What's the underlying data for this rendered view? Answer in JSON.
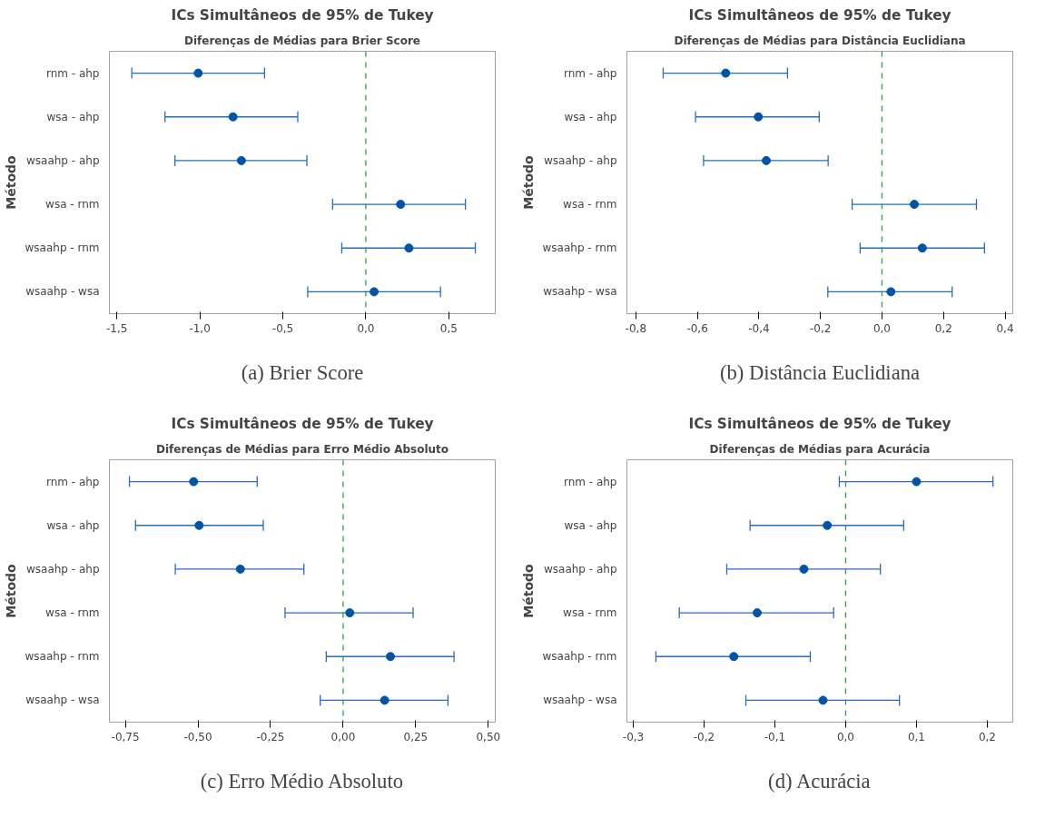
{
  "chart_data": [
    {
      "type": "scatter",
      "orientation": "horizontal",
      "title": "ICs Simultâneos de 95% de Tukey",
      "subtitle": "Diferenças de Médias para Brier Score",
      "ylabel": "Método",
      "categories": [
        "rnm - ahp",
        "wsa - ahp",
        "wsaahp - ahp",
        "wsa - rnm",
        "wsaahp - rnm",
        "wsaahp - wsa"
      ],
      "values": [
        -1.01,
        -0.8,
        -0.75,
        0.21,
        0.26,
        0.05
      ],
      "errors": [
        [
          -1.41,
          -0.61
        ],
        [
          -1.21,
          -0.41
        ],
        [
          -1.15,
          -0.355
        ],
        [
          -0.2,
          0.6
        ],
        [
          -0.145,
          0.66
        ],
        [
          -0.35,
          0.45
        ]
      ],
      "color": "#0054a6",
      "marker": "circle",
      "xlim": [
        -1.545,
        0.78
      ],
      "xticks": [
        {
          "value": -1.5,
          "label": "-1,5"
        },
        {
          "value": -1.0,
          "label": "-1,0"
        },
        {
          "value": -0.5,
          "label": "-0,5"
        },
        {
          "value": 0.0,
          "label": "0,0"
        },
        {
          "value": 0.5,
          "label": "0,5"
        }
      ],
      "ref_lines": [
        {
          "axis": "x",
          "value": 0,
          "color": "#2e9e46",
          "line_style": "dashed"
        }
      ],
      "annotations": [
        "(a) Brier Score"
      ]
    },
    {
      "type": "scatter",
      "orientation": "horizontal",
      "title": "ICs Simultâneos de 95% de Tukey",
      "subtitle": "Diferenças de Médias para Distância Euclidiana",
      "ylabel": "Método",
      "categories": [
        "rnm - ahp",
        "wsa - ahp",
        "wsaahp - ahp",
        "wsa - rnm",
        "wsaahp - rnm",
        "wsaahp - wsa"
      ],
      "values": [
        -0.508,
        -0.402,
        -0.376,
        0.105,
        0.131,
        0.029
      ],
      "errors": [
        [
          -0.711,
          -0.307
        ],
        [
          -0.606,
          -0.204
        ],
        [
          -0.58,
          -0.175
        ],
        [
          -0.097,
          0.307
        ],
        [
          -0.071,
          0.333
        ],
        [
          -0.176,
          0.228
        ]
      ],
      "color": "#0054a6",
      "marker": "circle",
      "xlim": [
        -0.829,
        0.425
      ],
      "xticks": [
        {
          "value": -0.8,
          "label": "-0,8"
        },
        {
          "value": -0.6,
          "label": "-0,6"
        },
        {
          "value": -0.4,
          "label": "-0,4"
        },
        {
          "value": -0.2,
          "label": "-0,2"
        },
        {
          "value": 0.0,
          "label": "0,0"
        },
        {
          "value": 0.2,
          "label": "0,2"
        },
        {
          "value": 0.4,
          "label": "0,4"
        }
      ],
      "ref_lines": [
        {
          "axis": "x",
          "value": 0,
          "color": "#2e9e46",
          "line_style": "dashed"
        }
      ],
      "annotations": [
        "(b) Distância Euclidiana"
      ]
    },
    {
      "type": "scatter",
      "orientation": "horizontal",
      "title": "ICs Simultâneos de 95% de Tukey",
      "subtitle": "Diferenças de Médias para Erro Médio Absoluto",
      "ylabel": "Método",
      "categories": [
        "rnm - ahp",
        "wsa - ahp",
        "wsaahp - ahp",
        "wsa - rnm",
        "wsaahp - rnm",
        "wsaahp - wsa"
      ],
      "values": [
        -0.515,
        -0.496,
        -0.354,
        0.023,
        0.163,
        0.143
      ],
      "errors": [
        [
          -0.736,
          -0.296
        ],
        [
          -0.715,
          -0.275
        ],
        [
          -0.578,
          -0.135
        ],
        [
          -0.2,
          0.241
        ],
        [
          -0.058,
          0.382
        ],
        [
          -0.079,
          0.361
        ]
      ],
      "color": "#0054a6",
      "marker": "circle",
      "xlim": [
        -0.805,
        0.524
      ],
      "xticks": [
        {
          "value": -0.75,
          "label": "-0,75"
        },
        {
          "value": -0.5,
          "label": "-0,50"
        },
        {
          "value": -0.25,
          "label": "-0,25"
        },
        {
          "value": 0.0,
          "label": "0,00"
        },
        {
          "value": 0.25,
          "label": "0,25"
        },
        {
          "value": 0.5,
          "label": "0,50"
        }
      ],
      "ref_lines": [
        {
          "axis": "x",
          "value": 0,
          "color": "#2e9e46",
          "line_style": "dashed"
        }
      ],
      "annotations": [
        "(c) Erro Médio Absoluto"
      ]
    },
    {
      "type": "scatter",
      "orientation": "horizontal",
      "title": "ICs Simultâneos de 95% de Tukey",
      "subtitle": "Diferenças de Médias para Acurácia",
      "ylabel": "Método",
      "categories": [
        "rnm - ahp",
        "wsa - ahp",
        "wsaahp - ahp",
        "wsa - rnm",
        "wsaahp - rnm",
        "wsaahp - wsa"
      ],
      "values": [
        0.1,
        -0.026,
        -0.059,
        -0.125,
        -0.158,
        -0.032
      ],
      "errors": [
        [
          -0.009,
          0.208
        ],
        [
          -0.135,
          0.082
        ],
        [
          -0.168,
          0.049
        ],
        [
          -0.235,
          -0.017
        ],
        [
          -0.268,
          -0.05
        ],
        [
          -0.141,
          0.076
        ]
      ],
      "color": "#0054a6",
      "marker": "circle",
      "xlim": [
        -0.309,
        0.236
      ],
      "xticks": [
        {
          "value": -0.3,
          "label": "-0,3"
        },
        {
          "value": -0.2,
          "label": "-0,2"
        },
        {
          "value": -0.1,
          "label": "-0,1"
        },
        {
          "value": 0.0,
          "label": "0,0"
        },
        {
          "value": 0.1,
          "label": "0,1"
        },
        {
          "value": 0.2,
          "label": "0,2"
        }
      ],
      "ref_lines": [
        {
          "axis": "x",
          "value": 0,
          "color": "#2e9e46",
          "line_style": "dashed"
        }
      ],
      "annotations": [
        "(d) Acurácia"
      ]
    }
  ]
}
